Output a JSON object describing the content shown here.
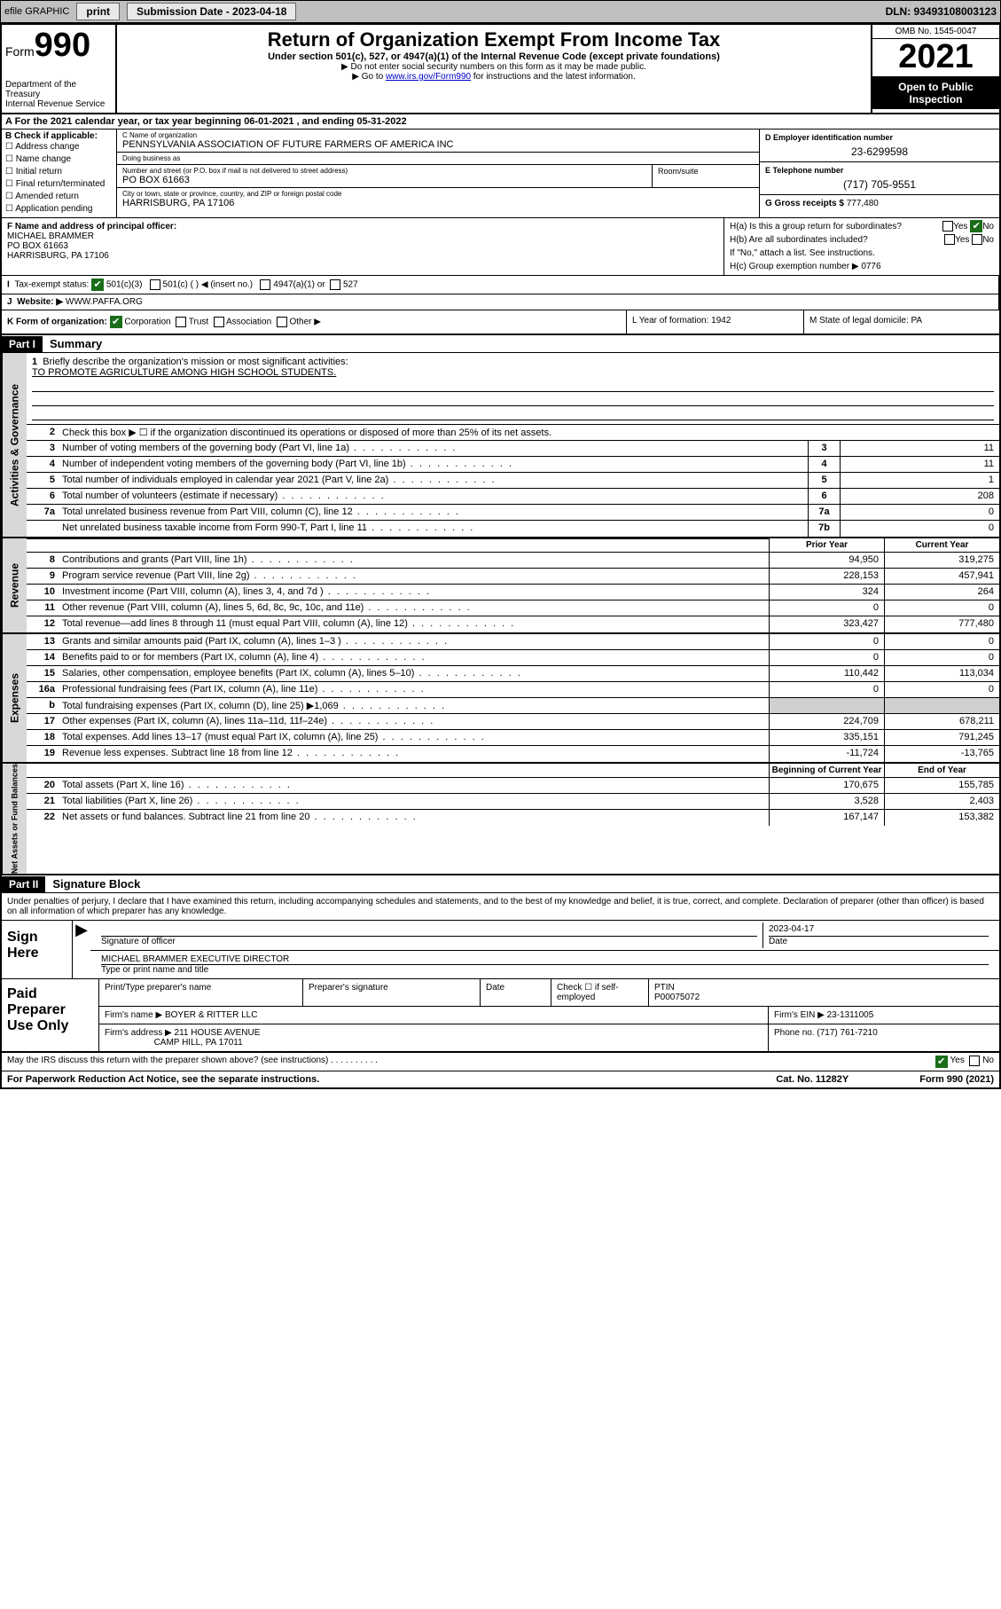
{
  "topbar": {
    "efile": "efile GRAPHIC",
    "print": "print",
    "submission": "Submission Date - 2023-04-18",
    "dln": "DLN: 93493108003123"
  },
  "header": {
    "form_word": "Form",
    "form_no": "990",
    "dept": "Department of the Treasury",
    "irs": "Internal Revenue Service",
    "title": "Return of Organization Exempt From Income Tax",
    "subtitle": "Under section 501(c), 527, or 4947(a)(1) of the Internal Revenue Code (except private foundations)",
    "note1": "▶ Do not enter social security numbers on this form as it may be made public.",
    "note2_pre": "▶ Go to ",
    "note2_link": "www.irs.gov/Form990",
    "note2_post": " for instructions and the latest information.",
    "omb": "OMB No. 1545-0047",
    "year": "2021",
    "inspect": "Open to Public Inspection"
  },
  "period": "A For the 2021 calendar year, or tax year beginning 06-01-2021   , and ending 05-31-2022",
  "boxB": {
    "label": "B Check if applicable:",
    "opts": [
      "Address change",
      "Name change",
      "Initial return",
      "Final return/terminated",
      "Amended return",
      "Application pending"
    ]
  },
  "boxC": {
    "name_lbl": "C Name of organization",
    "name": "PENNSYLVANIA ASSOCIATION OF FUTURE FARMERS OF AMERICA INC",
    "dba_lbl": "Doing business as",
    "dba": "",
    "addr_lbl": "Number and street (or P.O. box if mail is not delivered to street address)",
    "addr": "PO BOX 61663",
    "room_lbl": "Room/suite",
    "city_lbl": "City or town, state or province, country, and ZIP or foreign postal code",
    "city": "HARRISBURG, PA  17106"
  },
  "boxD": {
    "ein_lbl": "D Employer identification number",
    "ein": "23-6299598",
    "phone_lbl": "E Telephone number",
    "phone": "(717) 705-9551",
    "gross_lbl": "G Gross receipts $",
    "gross": "777,480"
  },
  "boxF": {
    "lbl": "F Name and address of principal officer:",
    "name": "MICHAEL BRAMMER",
    "addr1": "PO BOX 61663",
    "addr2": "HARRISBURG, PA  17106"
  },
  "boxH": {
    "Ha": "H(a)  Is this a group return for subordinates?",
    "Ha_ans_yes": "Yes",
    "Ha_ans_no": "No",
    "Hb": "H(b)  Are all subordinates included?",
    "Hb_note": "If \"No,\" attach a list. See instructions.",
    "Hc": "H(c)  Group exemption number ▶",
    "Hc_val": "0776"
  },
  "rowI": {
    "lbl": "Tax-exempt status:",
    "opt1": "501(c)(3)",
    "opt2": "501(c) (   ) ◀ (insert no.)",
    "opt3": "4947(a)(1) or",
    "opt4": "527"
  },
  "rowJ": {
    "lbl": "Website: ▶",
    "val": "WWW.PAFFA.ORG"
  },
  "rowK": {
    "lbl": "K Form of organization:",
    "corp": "Corporation",
    "trust": "Trust",
    "assoc": "Association",
    "other": "Other ▶",
    "L": "L Year of formation: 1942",
    "M": "M State of legal domicile: PA"
  },
  "partI": {
    "hdr": "Part I",
    "title": "Summary",
    "q1": "Briefly describe the organization's mission or most significant activities:",
    "mission": "TO PROMOTE AGRICULTURE AMONG HIGH SCHOOL STUDENTS.",
    "q2": "Check this box ▶ ☐  if the organization discontinued its operations or disposed of more than 25% of its net assets.",
    "rows_gov": [
      {
        "n": "3",
        "d": "Number of voting members of the governing body (Part VI, line 1a)",
        "k": "3",
        "v": "11"
      },
      {
        "n": "4",
        "d": "Number of independent voting members of the governing body (Part VI, line 1b)",
        "k": "4",
        "v": "11"
      },
      {
        "n": "5",
        "d": "Total number of individuals employed in calendar year 2021 (Part V, line 2a)",
        "k": "5",
        "v": "1"
      },
      {
        "n": "6",
        "d": "Total number of volunteers (estimate if necessary)",
        "k": "6",
        "v": "208"
      },
      {
        "n": "7a",
        "d": "Total unrelated business revenue from Part VIII, column (C), line 12",
        "k": "7a",
        "v": "0"
      },
      {
        "n": "",
        "d": "Net unrelated business taxable income from Form 990-T, Part I, line 11",
        "k": "7b",
        "v": "0"
      }
    ],
    "hdr_prior": "Prior Year",
    "hdr_current": "Current Year",
    "rows_rev": [
      {
        "n": "8",
        "d": "Contributions and grants (Part VIII, line 1h)",
        "p": "94,950",
        "c": "319,275"
      },
      {
        "n": "9",
        "d": "Program service revenue (Part VIII, line 2g)",
        "p": "228,153",
        "c": "457,941"
      },
      {
        "n": "10",
        "d": "Investment income (Part VIII, column (A), lines 3, 4, and 7d )",
        "p": "324",
        "c": "264"
      },
      {
        "n": "11",
        "d": "Other revenue (Part VIII, column (A), lines 5, 6d, 8c, 9c, 10c, and 11e)",
        "p": "0",
        "c": "0"
      },
      {
        "n": "12",
        "d": "Total revenue—add lines 8 through 11 (must equal Part VIII, column (A), line 12)",
        "p": "323,427",
        "c": "777,480"
      }
    ],
    "rows_exp": [
      {
        "n": "13",
        "d": "Grants and similar amounts paid (Part IX, column (A), lines 1–3 )",
        "p": "0",
        "c": "0"
      },
      {
        "n": "14",
        "d": "Benefits paid to or for members (Part IX, column (A), line 4)",
        "p": "0",
        "c": "0"
      },
      {
        "n": "15",
        "d": "Salaries, other compensation, employee benefits (Part IX, column (A), lines 5–10)",
        "p": "110,442",
        "c": "113,034"
      },
      {
        "n": "16a",
        "d": "Professional fundraising fees (Part IX, column (A), line 11e)",
        "p": "0",
        "c": "0"
      },
      {
        "n": "b",
        "d": "Total fundraising expenses (Part IX, column (D), line 25) ▶1,069",
        "p": "",
        "c": "",
        "shade": true
      },
      {
        "n": "17",
        "d": "Other expenses (Part IX, column (A), lines 11a–11d, 11f–24e)",
        "p": "224,709",
        "c": "678,211"
      },
      {
        "n": "18",
        "d": "Total expenses. Add lines 13–17 (must equal Part IX, column (A), line 25)",
        "p": "335,151",
        "c": "791,245"
      },
      {
        "n": "19",
        "d": "Revenue less expenses. Subtract line 18 from line 12",
        "p": "-11,724",
        "c": "-13,765"
      }
    ],
    "hdr_begin": "Beginning of Current Year",
    "hdr_end": "End of Year",
    "rows_net": [
      {
        "n": "20",
        "d": "Total assets (Part X, line 16)",
        "p": "170,675",
        "c": "155,785"
      },
      {
        "n": "21",
        "d": "Total liabilities (Part X, line 26)",
        "p": "3,528",
        "c": "2,403"
      },
      {
        "n": "22",
        "d": "Net assets or fund balances. Subtract line 21 from line 20",
        "p": "167,147",
        "c": "153,382"
      }
    ],
    "side_gov": "Activities & Governance",
    "side_rev": "Revenue",
    "side_exp": "Expenses",
    "side_net": "Net Assets or Fund Balances"
  },
  "partII": {
    "hdr": "Part II",
    "title": "Signature Block",
    "intro": "Under penalties of perjury, I declare that I have examined this return, including accompanying schedules and statements, and to the best of my knowledge and belief, it is true, correct, and complete. Declaration of preparer (other than officer) is based on all information of which preparer has any knowledge.",
    "sign_here": "Sign Here",
    "sig_officer_lbl": "Signature of officer",
    "date_lbl": "Date",
    "sig_date": "2023-04-17",
    "name_title": "MICHAEL BRAMMER  EXECUTIVE DIRECTOR",
    "name_title_lbl": "Type or print name and title",
    "paid": "Paid Preparer Use Only",
    "prep_name_lbl": "Print/Type preparer's name",
    "prep_sig_lbl": "Preparer's signature",
    "prep_date_lbl": "Date",
    "prep_check": "Check ☐ if self-employed",
    "ptin_lbl": "PTIN",
    "ptin": "P00075072",
    "firm_name_lbl": "Firm's name    ▶",
    "firm_name": "BOYER & RITTER LLC",
    "firm_ein_lbl": "Firm's EIN ▶",
    "firm_ein": "23-1311005",
    "firm_addr_lbl": "Firm's address ▶",
    "firm_addr1": "211 HOUSE AVENUE",
    "firm_addr2": "CAMP HILL, PA  17011",
    "firm_phone_lbl": "Phone no.",
    "firm_phone": "(717) 761-7210",
    "discuss": "May the IRS discuss this return with the preparer shown above? (see instructions)",
    "yes": "Yes",
    "no": "No",
    "paperwork": "For Paperwork Reduction Act Notice, see the separate instructions.",
    "catno": "Cat. No. 11282Y",
    "formfoot": "Form 990 (2021)"
  }
}
